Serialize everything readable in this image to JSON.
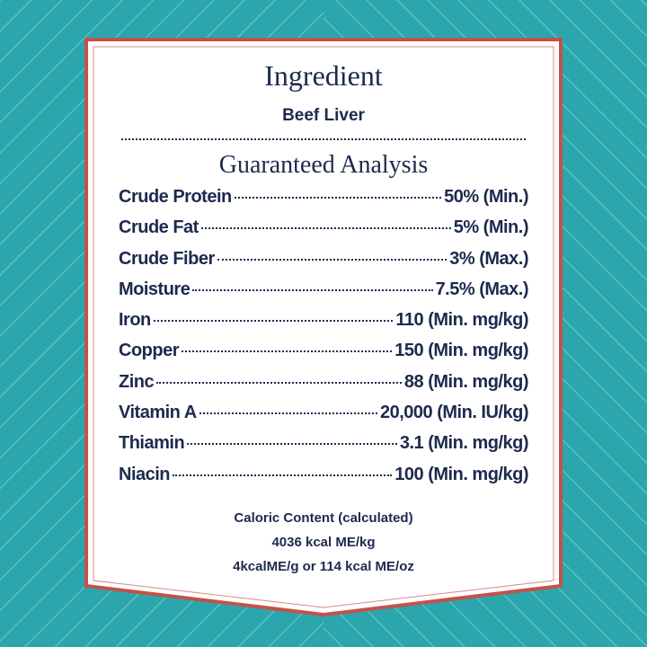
{
  "ingredient": {
    "title": "Ingredient",
    "text": "Beef Liver"
  },
  "analysis": {
    "title": "Guaranteed Analysis",
    "rows": [
      [
        "Crude Protein",
        "50% (Min.)"
      ],
      [
        "Crude Fat",
        "5% (Min.)"
      ],
      [
        "Crude Fiber",
        "3% (Max.)"
      ],
      [
        "Moisture",
        "7.5% (Max.)"
      ],
      [
        "Iron",
        "110 (Min. mg/kg)"
      ],
      [
        "Copper",
        "150 (Min. mg/kg)"
      ],
      [
        "Zinc",
        "88 (Min. mg/kg)"
      ],
      [
        "Vitamin A",
        "20,000 (Min. IU/kg)"
      ],
      [
        "Thiamin",
        "3.1 (Min. mg/kg)"
      ],
      [
        "Niacin",
        "100 (Min. mg/kg)"
      ]
    ]
  },
  "caloric": [
    "Caloric Content (calculated)",
    "4036 kcal ME/kg",
    "4kcalME/g or 114 kcal ME/oz"
  ]
}
